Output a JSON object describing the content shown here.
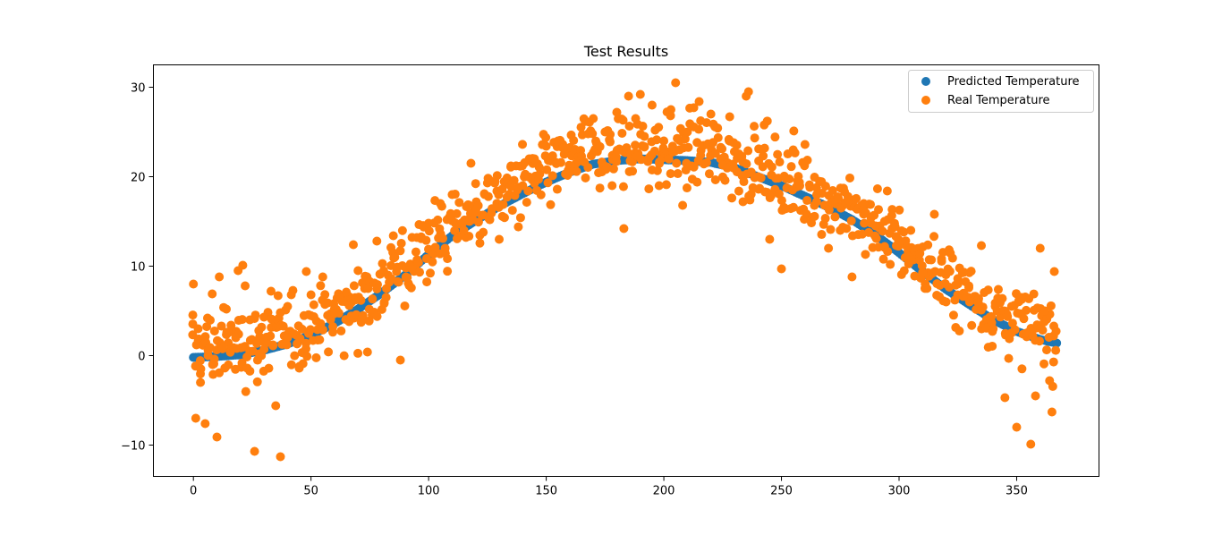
{
  "chart_data": {
    "type": "scatter",
    "title": "Test Results",
    "xlabel": "",
    "ylabel": "",
    "xlim": [
      -17,
      385
    ],
    "ylim": [
      -13.5,
      32.5
    ],
    "x_ticks": [
      "0",
      "50",
      "100",
      "150",
      "200",
      "250",
      "300",
      "350"
    ],
    "y_ticks": [
      "−10",
      "0",
      "10",
      "20",
      "30"
    ],
    "legend_position": "top-right",
    "grid": false,
    "series": [
      {
        "name": "Predicted Temperature",
        "color": "#1f77b4",
        "model": "smooth seasonal curve sampled daily, x 0..367",
        "x": [
          0,
          10,
          20,
          30,
          40,
          50,
          60,
          70,
          80,
          90,
          100,
          110,
          120,
          130,
          140,
          150,
          160,
          170,
          180,
          190,
          200,
          210,
          220,
          230,
          240,
          250,
          260,
          270,
          280,
          290,
          300,
          310,
          320,
          330,
          340,
          350,
          360,
          367
        ],
        "y": [
          -0.2,
          -0.1,
          0.1,
          0.6,
          1.3,
          2.3,
          3.6,
          5.2,
          7.0,
          9.0,
          11.3,
          13.4,
          15.1,
          16.7,
          18.1,
          19.4,
          20.5,
          21.4,
          21.8,
          22.0,
          21.9,
          21.8,
          21.6,
          21.0,
          20.0,
          19.0,
          17.8,
          16.6,
          15.2,
          13.5,
          11.5,
          9.4,
          7.4,
          5.7,
          4.0,
          2.7,
          1.8,
          1.4
        ]
      },
      {
        "name": "Real Temperature",
        "color": "#ff7f0e",
        "model": "daily observations scattered around the seasonal curve, x 0..367",
        "x": [
          0,
          1,
          2,
          3,
          5,
          6,
          8,
          10,
          11,
          14,
          16,
          18,
          19,
          21,
          22,
          24,
          26,
          28,
          30,
          33,
          35,
          36,
          37,
          40,
          45,
          48,
          50,
          55,
          60,
          65,
          68,
          70,
          74,
          78,
          85,
          88,
          92,
          95,
          100,
          105,
          110,
          115,
          118,
          120,
          125,
          130,
          135,
          140,
          145,
          150,
          155,
          160,
          165,
          170,
          175,
          178,
          180,
          183,
          185,
          188,
          190,
          195,
          198,
          200,
          203,
          205,
          208,
          210,
          215,
          220,
          225,
          228,
          230,
          235,
          236,
          240,
          245,
          250,
          255,
          260,
          265,
          270,
          275,
          280,
          285,
          290,
          295,
          300,
          305,
          310,
          315,
          320,
          325,
          330,
          335,
          340,
          345,
          350,
          352,
          354,
          356,
          358,
          360,
          362,
          364,
          365,
          366
        ],
        "y": [
          8.0,
          -7.0,
          3.0,
          -3.0,
          -7.6,
          4.2,
          6.9,
          -9.1,
          8.8,
          5.2,
          3.4,
          2.0,
          9.5,
          10.1,
          7.8,
          4.0,
          -10.7,
          0.2,
          4.3,
          7.2,
          -5.6,
          6.7,
          -11.3,
          2.0,
          -1.4,
          9.4,
          6.8,
          8.8,
          4.7,
          7.1,
          12.4,
          9.5,
          0.4,
          12.8,
          13.4,
          -0.5,
          10.0,
          13.2,
          14.8,
          17.0,
          18.0,
          14.0,
          21.5,
          16.0,
          19.3,
          13.0,
          21.2,
          19.0,
          22.0,
          23.4,
          24.0,
          20.5,
          22.3,
          26.5,
          25.0,
          19.0,
          27.2,
          14.2,
          29.0,
          26.5,
          29.2,
          28.0,
          19.0,
          24.0,
          27.5,
          30.5,
          16.8,
          25.0,
          28.4,
          27.0,
          21.3,
          26.7,
          22.8,
          29.0,
          29.5,
          20.0,
          13.0,
          9.7,
          23.0,
          23.6,
          18.0,
          12.0,
          14.0,
          8.8,
          17.0,
          14.5,
          18.4,
          12.5,
          14.0,
          9.3,
          15.8,
          6.0,
          8.0,
          6.0,
          12.3,
          3.0,
          -4.7,
          -8.0,
          6.5,
          2.5,
          -9.9,
          -4.5,
          12.0,
          5.0,
          -2.8,
          -6.3,
          9.4
        ]
      }
    ]
  }
}
